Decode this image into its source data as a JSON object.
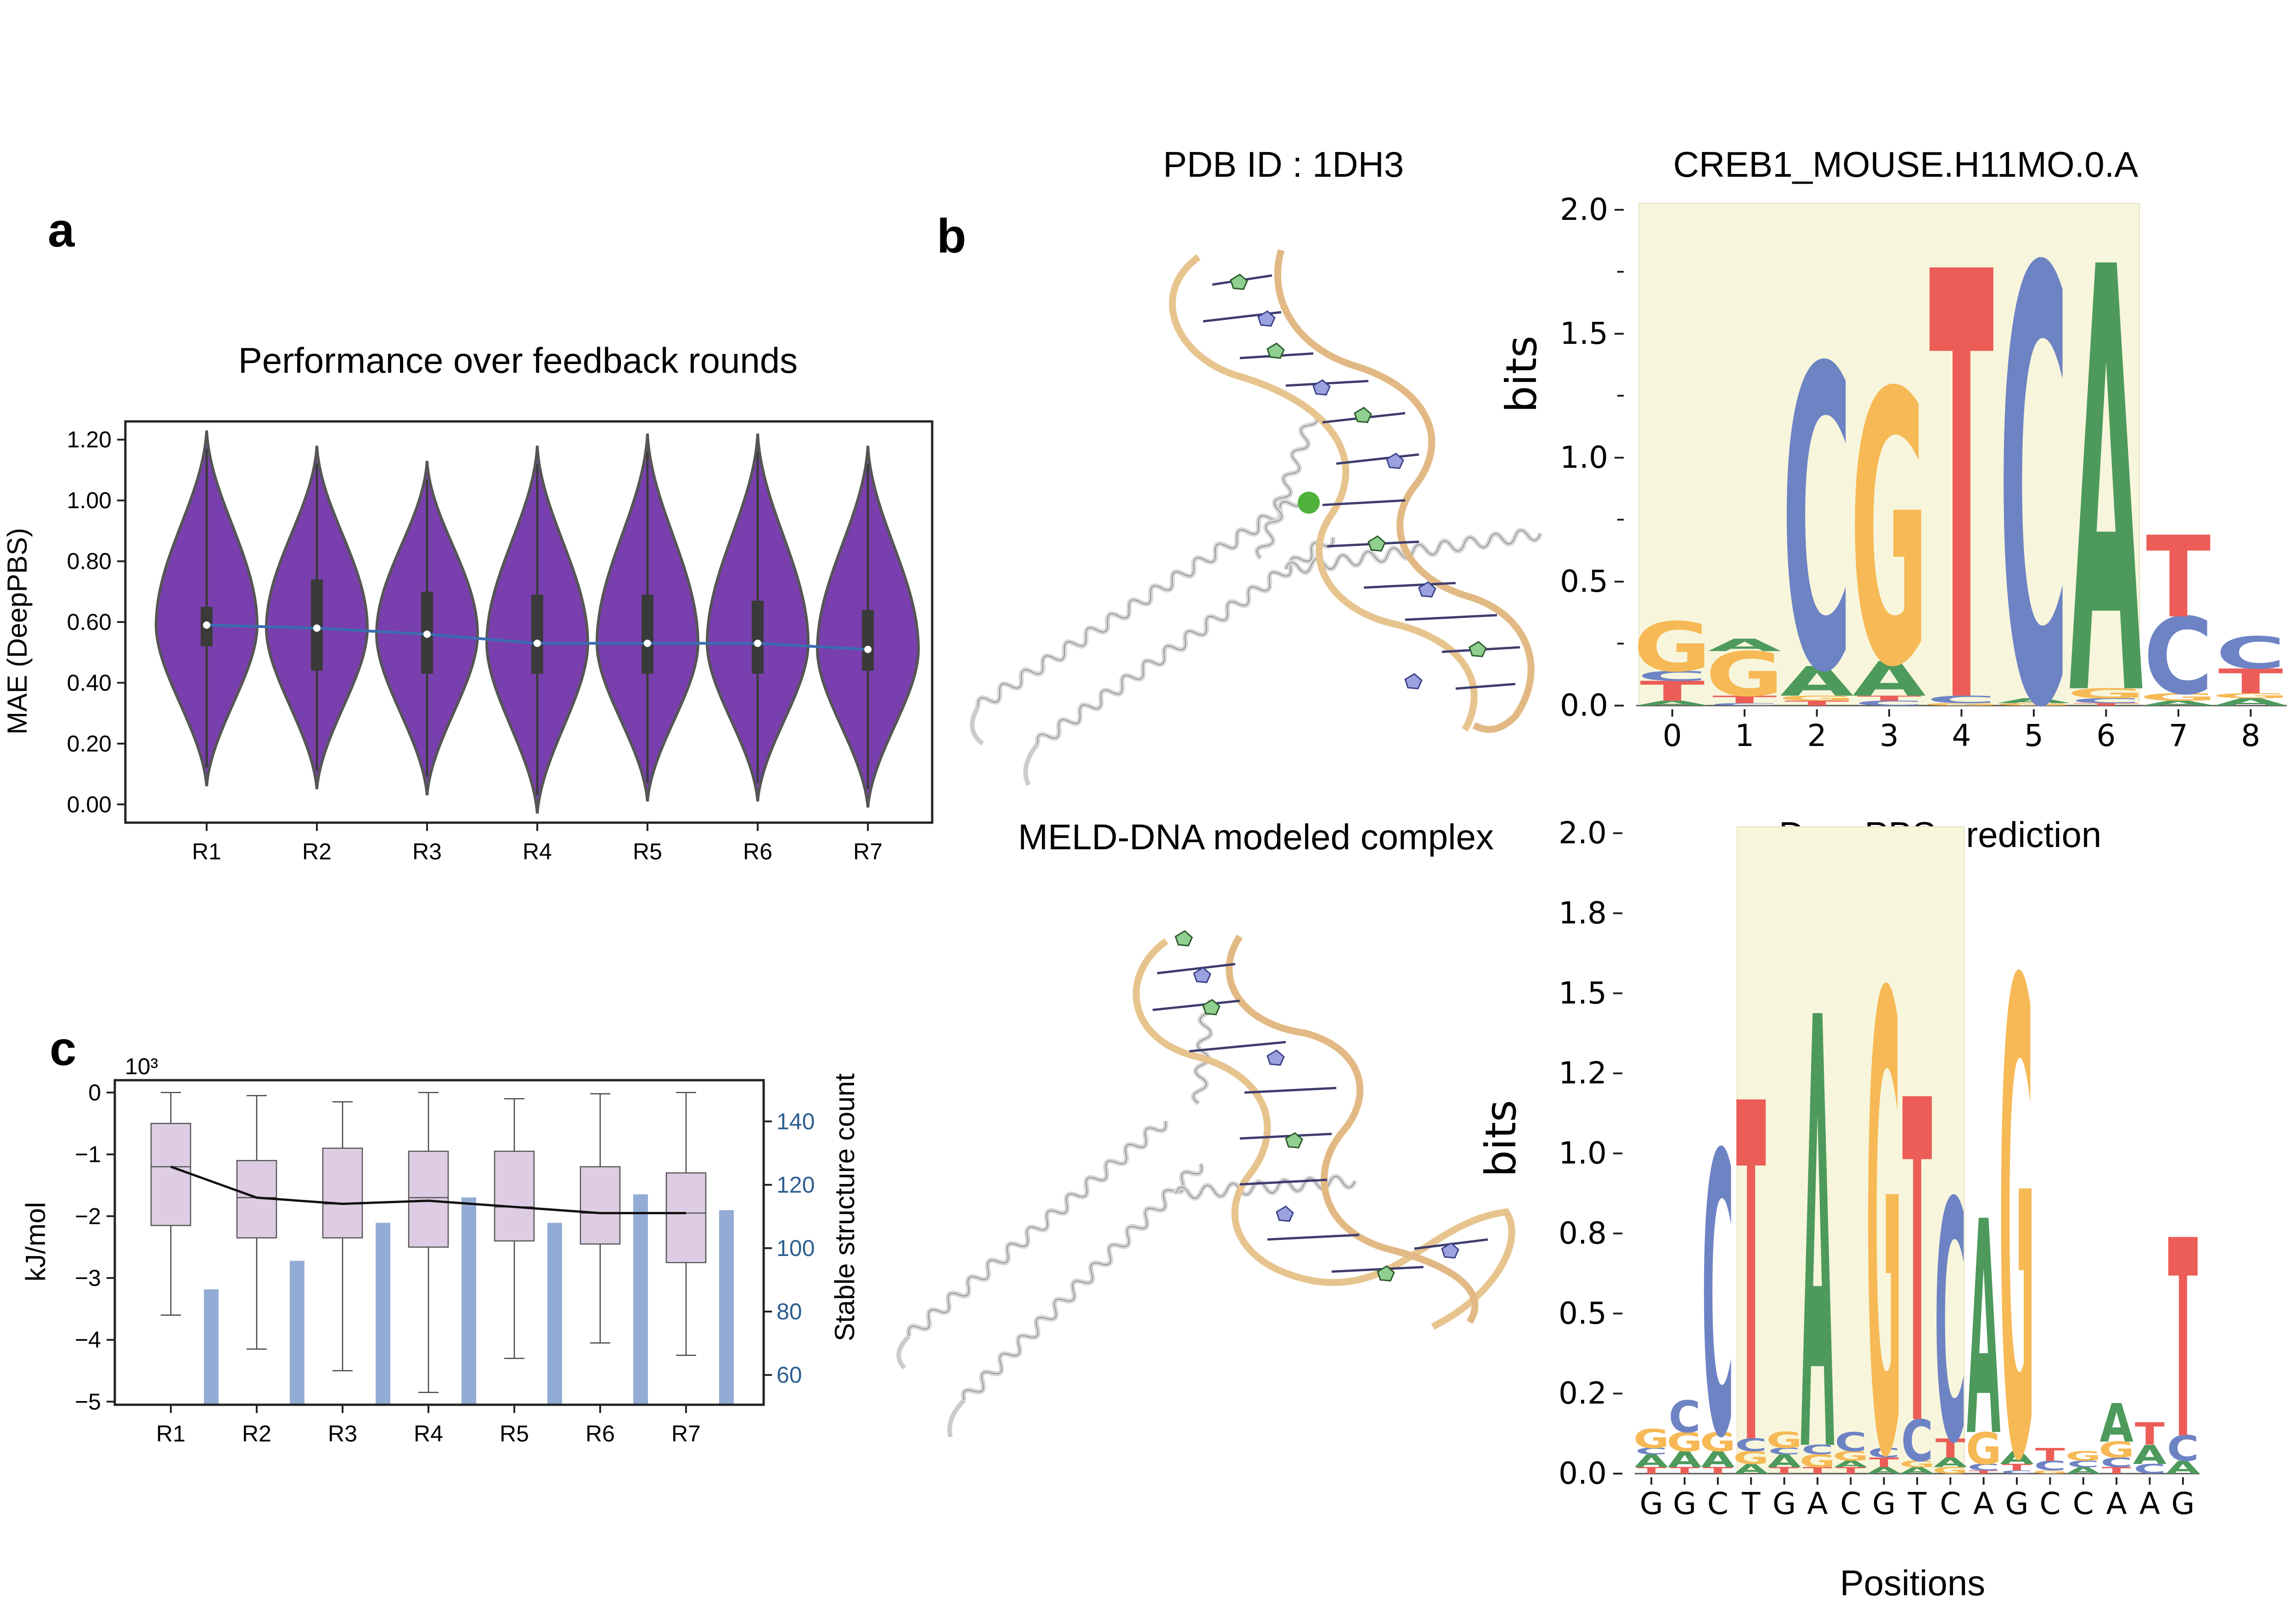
{
  "panel_labels": {
    "a": "a",
    "b": "b",
    "c": "c"
  },
  "structures": {
    "top_title": "PDB ID : 1DH3",
    "bottom_title": "MELD-DNA modeled complex"
  },
  "colors": {
    "violin": "#7a3fae",
    "violin_edge": "#555555",
    "trend_line": "#3b6cb0",
    "box_fill": "#ddcce3",
    "count_bar": "#93acd5",
    "count_axis": "#2e5f8f",
    "base_A": "#4d9a5c",
    "base_C": "#6e83c4",
    "base_G": "#f6b955",
    "base_T": "#ec5d57",
    "highlight": "#f7f6dc"
  },
  "chart_data": [
    {
      "id": "a",
      "type": "violin",
      "title": "Performance over feedback rounds",
      "xlabel": "",
      "ylabel": "MAE (DeepPBS)",
      "categories": [
        "R1",
        "R2",
        "R3",
        "R4",
        "R5",
        "R6",
        "R7"
      ],
      "ylim": [
        -0.06,
        1.26
      ],
      "yticks": [
        "0.00",
        "0.20",
        "0.40",
        "0.60",
        "0.80",
        "1.00",
        "1.20"
      ],
      "median": [
        0.59,
        0.58,
        0.56,
        0.53,
        0.53,
        0.53,
        0.51
      ],
      "q1": [
        0.52,
        0.44,
        0.43,
        0.43,
        0.43,
        0.43,
        0.44
      ],
      "q3": [
        0.65,
        0.74,
        0.7,
        0.69,
        0.69,
        0.67,
        0.64
      ],
      "min": [
        0.06,
        0.05,
        0.03,
        -0.03,
        0.01,
        0.01,
        -0.01
      ],
      "max": [
        1.23,
        1.18,
        1.13,
        1.18,
        1.22,
        1.22,
        1.18
      ],
      "trend_line": [
        0.59,
        0.58,
        0.56,
        0.53,
        0.53,
        0.53,
        0.51
      ],
      "grid": false
    },
    {
      "id": "c",
      "type": "box",
      "xlabel": "",
      "ylabel": "kJ/mol",
      "y_multiplier": "10³",
      "y2label": "Stable structure count",
      "categories": [
        "R1",
        "R2",
        "R3",
        "R4",
        "R5",
        "R6",
        "R7"
      ],
      "ylim": [
        -5.05,
        0.2
      ],
      "yticks": [
        "0",
        "−1",
        "−2",
        "−3",
        "−4",
        "−5"
      ],
      "whisker_low": [
        -3.6,
        -4.15,
        -4.5,
        -4.85,
        -4.3,
        -4.05,
        -4.25
      ],
      "q1": [
        -2.15,
        -2.35,
        -2.35,
        -2.5,
        -2.4,
        -2.45,
        -2.75
      ],
      "median": [
        -1.2,
        -1.7,
        -1.8,
        -1.7,
        -1.85,
        -1.95,
        -1.95
      ],
      "q3": [
        -0.5,
        -1.1,
        -0.9,
        -0.95,
        -0.95,
        -1.2,
        -1.3
      ],
      "whisker_high": [
        0.0,
        -0.05,
        -0.15,
        0.0,
        -0.1,
        -0.02,
        0.0
      ],
      "mean_line": [
        -1.2,
        -1.7,
        -1.8,
        -1.75,
        -1.85,
        -1.95,
        -1.95
      ],
      "y2lim": [
        50.6,
        153
      ],
      "y2ticks": [
        "60",
        "80",
        "100",
        "120",
        "140"
      ],
      "stable_structure_count": [
        87,
        96,
        108,
        116,
        108,
        117,
        112
      ],
      "grid": false
    },
    {
      "id": "b-top",
      "type": "sequence_logo",
      "title": "CREB1_MOUSE.H11MO.0.A",
      "ylabel": "bits",
      "xlabel": "",
      "ylim": [
        0,
        2.0
      ],
      "yticks": [
        "0.0",
        "0.5",
        "1.0",
        "1.5",
        "2.0"
      ],
      "positions": [
        "0",
        "1",
        "2",
        "3",
        "4",
        "5",
        "6",
        "7",
        "8"
      ],
      "highlight_positions": [
        0,
        6
      ],
      "columns": [
        [
          {
            "base": "A",
            "bits": 0.02
          },
          {
            "base": "T",
            "bits": 0.08
          },
          {
            "base": "C",
            "bits": 0.04
          },
          {
            "base": "G",
            "bits": 0.2
          }
        ],
        [
          {
            "base": "C",
            "bits": 0.01
          },
          {
            "base": "T",
            "bits": 0.03
          },
          {
            "base": "G",
            "bits": 0.18
          },
          {
            "base": "A",
            "bits": 0.05
          }
        ],
        [
          {
            "base": "T",
            "bits": 0.02
          },
          {
            "base": "G",
            "bits": 0.02
          },
          {
            "base": "A",
            "bits": 0.12
          },
          {
            "base": "C",
            "bits": 1.22
          }
        ],
        [
          {
            "base": "C",
            "bits": 0.02
          },
          {
            "base": "T",
            "bits": 0.02
          },
          {
            "base": "A",
            "bits": 0.14
          },
          {
            "base": "G",
            "bits": 1.1
          }
        ],
        [
          {
            "base": "G",
            "bits": 0.01
          },
          {
            "base": "C",
            "bits": 0.03
          },
          {
            "base": "T",
            "bits": 1.73
          }
        ],
        [
          {
            "base": "G",
            "bits": 0.01
          },
          {
            "base": "A",
            "bits": 0.02
          },
          {
            "base": "C",
            "bits": 1.75
          }
        ],
        [
          {
            "base": "T",
            "bits": 0.01
          },
          {
            "base": "C",
            "bits": 0.02
          },
          {
            "base": "G",
            "bits": 0.04
          },
          {
            "base": "A",
            "bits": 1.72
          }
        ],
        [
          {
            "base": "A",
            "bits": 0.02
          },
          {
            "base": "G",
            "bits": 0.03
          },
          {
            "base": "C",
            "bits": 0.31
          },
          {
            "base": "T",
            "bits": 0.33
          }
        ],
        [
          {
            "base": "A",
            "bits": 0.03
          },
          {
            "base": "G",
            "bits": 0.02
          },
          {
            "base": "T",
            "bits": 0.1
          },
          {
            "base": "C",
            "bits": 0.13
          }
        ]
      ]
    },
    {
      "id": "b-bottom",
      "type": "sequence_logo",
      "title": "DeepPBS prediction",
      "ylabel": "bits",
      "xlabel": "Positions",
      "ylim": [
        0,
        2.0
      ],
      "yticks": [
        "0.0",
        "0.2",
        "0.5",
        "0.8",
        "1.0",
        "1.2",
        "1.5",
        "1.8",
        "2.0"
      ],
      "positions": [
        "G",
        "G",
        "C",
        "T",
        "G",
        "A",
        "C",
        "G",
        "T",
        "C",
        "A",
        "G",
        "C",
        "C",
        "A",
        "A",
        "G"
      ],
      "highlight_positions": [
        3,
        9
      ],
      "columns": [
        [
          {
            "base": "T",
            "bits": 0.02
          },
          {
            "base": "A",
            "bits": 0.04
          },
          {
            "base": "C",
            "bits": 0.02
          },
          {
            "base": "G",
            "bits": 0.06
          }
        ],
        [
          {
            "base": "T",
            "bits": 0.02
          },
          {
            "base": "A",
            "bits": 0.05
          },
          {
            "base": "G",
            "bits": 0.06
          },
          {
            "base": "C",
            "bits": 0.1
          }
        ],
        [
          {
            "base": "T",
            "bits": 0.02
          },
          {
            "base": "A",
            "bits": 0.05
          },
          {
            "base": "G",
            "bits": 0.06
          },
          {
            "base": "C",
            "bits": 0.88
          }
        ],
        [
          {
            "base": "A",
            "bits": 0.03
          },
          {
            "base": "G",
            "bits": 0.04
          },
          {
            "base": "C",
            "bits": 0.04
          },
          {
            "base": "T",
            "bits": 1.06
          }
        ],
        [
          {
            "base": "T",
            "bits": 0.02
          },
          {
            "base": "A",
            "bits": 0.04
          },
          {
            "base": "C",
            "bits": 0.02
          },
          {
            "base": "G",
            "bits": 0.05
          }
        ],
        [
          {
            "base": "T",
            "bits": 0.02
          },
          {
            "base": "G",
            "bits": 0.04
          },
          {
            "base": "C",
            "bits": 0.03
          },
          {
            "base": "A",
            "bits": 1.35
          }
        ],
        [
          {
            "base": "T",
            "bits": 0.02
          },
          {
            "base": "A",
            "bits": 0.02
          },
          {
            "base": "G",
            "bits": 0.03
          },
          {
            "base": "C",
            "bits": 0.06
          }
        ],
        [
          {
            "base": "A",
            "bits": 0.02
          },
          {
            "base": "T",
            "bits": 0.03
          },
          {
            "base": "C",
            "bits": 0.03
          },
          {
            "base": "G",
            "bits": 1.43
          }
        ],
        [
          {
            "base": "A",
            "bits": 0.02
          },
          {
            "base": "G",
            "bits": 0.02
          },
          {
            "base": "C",
            "bits": 0.13
          },
          {
            "base": "T",
            "bits": 1.01
          }
        ],
        [
          {
            "base": "G",
            "bits": 0.02
          },
          {
            "base": "A",
            "bits": 0.03
          },
          {
            "base": "T",
            "bits": 0.06
          },
          {
            "base": "C",
            "bits": 0.75
          }
        ],
        [
          {
            "base": "T",
            "bits": 0.01
          },
          {
            "base": "C",
            "bits": 0.02
          },
          {
            "base": "G",
            "bits": 0.1
          },
          {
            "base": "A",
            "bits": 0.67
          }
        ],
        [
          {
            "base": "C",
            "bits": 0.01
          },
          {
            "base": "T",
            "bits": 0.02
          },
          {
            "base": "A",
            "bits": 0.04
          },
          {
            "base": "G",
            "bits": 1.48
          }
        ],
        [
          {
            "base": "G",
            "bits": 0.01
          },
          {
            "base": "C",
            "bits": 0.03
          },
          {
            "base": "T",
            "bits": 0.04
          }
        ],
        [
          {
            "base": "A",
            "bits": 0.02
          },
          {
            "base": "C",
            "bits": 0.02
          },
          {
            "base": "G",
            "bits": 0.03
          }
        ],
        [
          {
            "base": "T",
            "bits": 0.02
          },
          {
            "base": "C",
            "bits": 0.03
          },
          {
            "base": "G",
            "bits": 0.05
          },
          {
            "base": "A",
            "bits": 0.12
          }
        ],
        [
          {
            "base": "C",
            "bits": 0.03
          },
          {
            "base": "A",
            "bits": 0.06
          },
          {
            "base": "T",
            "bits": 0.07
          }
        ],
        [
          {
            "base": "A",
            "bits": 0.04
          },
          {
            "base": "C",
            "bits": 0.08
          },
          {
            "base": "T",
            "bits": 0.62
          }
        ]
      ]
    }
  ]
}
